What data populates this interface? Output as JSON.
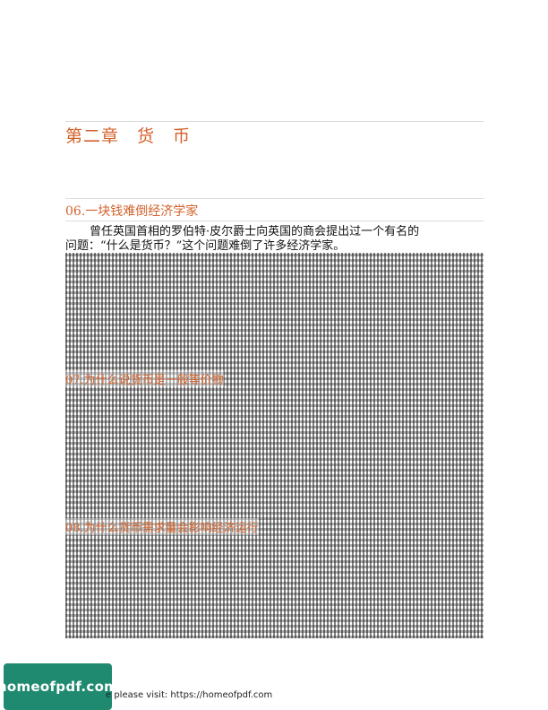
{
  "chapter": {
    "title": "第二章　货　币"
  },
  "section": {
    "title": "06.一块钱难倒经济学家",
    "lines": [
      "曾任英国首相的罗伯特·皮尔爵士向英国的商会提出过一个有名的",
      "问题：“什么是货币？”这个问题难倒了许多经济学家。"
    ]
  },
  "overprint_headings": [
    "07.为什么说货币是一般等价物",
    "08.为什么货币需求量会影响经济运行"
  ],
  "badge": {
    "text": "homeofpdf.com"
  },
  "footer": {
    "text": "e please visit: https://homeofpdf.com"
  }
}
